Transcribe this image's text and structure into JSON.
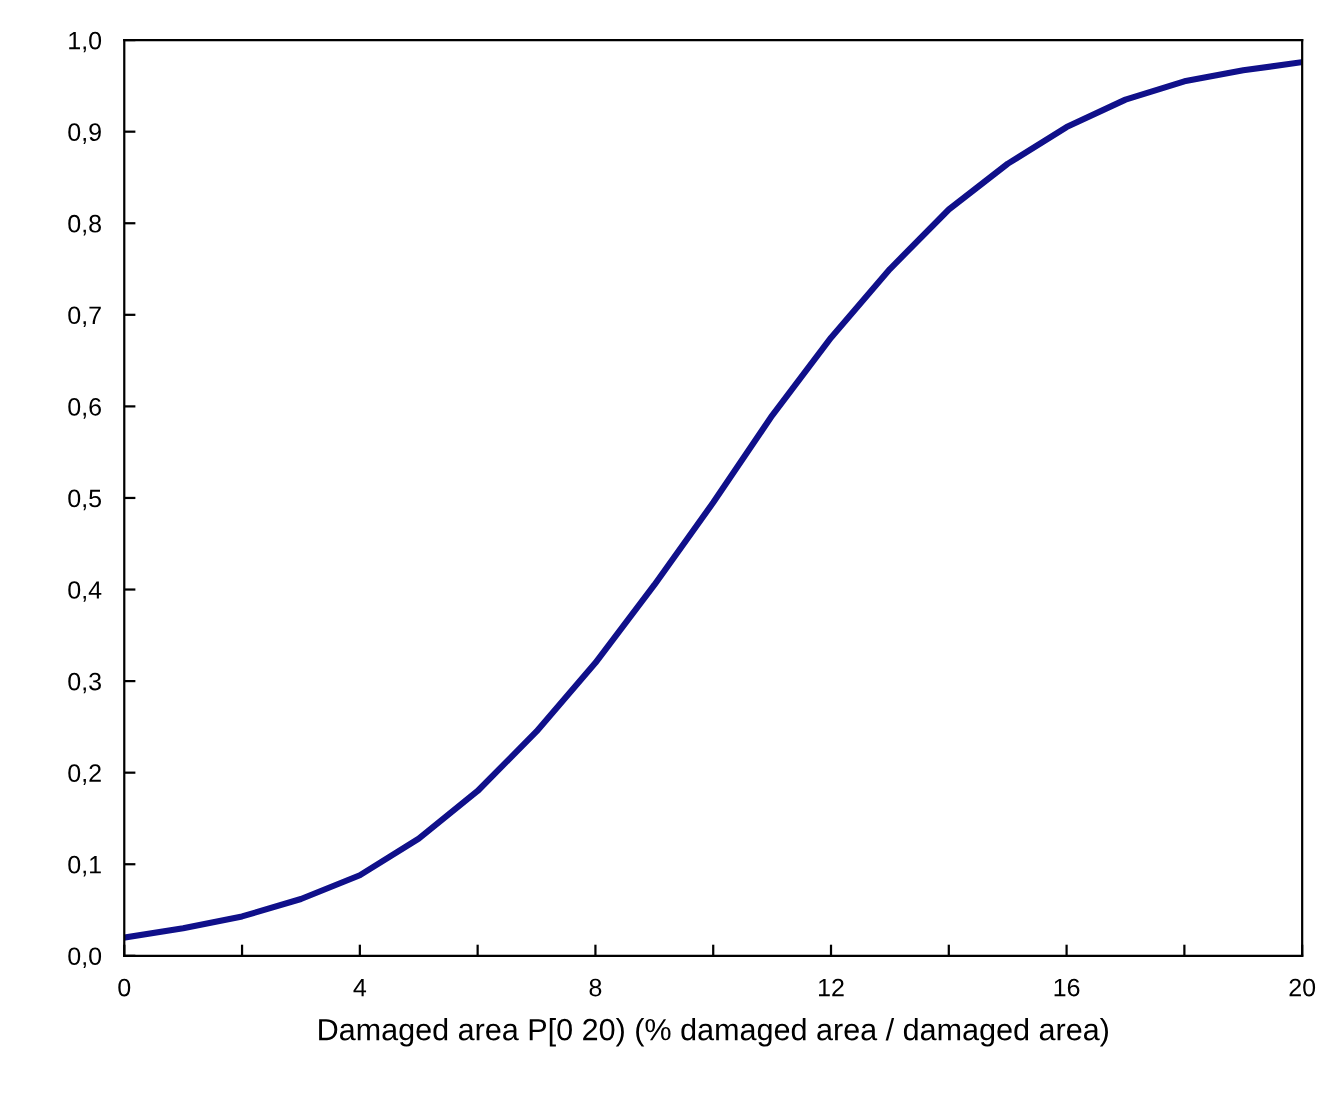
{
  "chart_data": {
    "type": "line",
    "xlabel": "Damaged area P[0 20) (% damaged area / damaged area)",
    "x": [
      0,
      1,
      2,
      3,
      4,
      5,
      6,
      7,
      8,
      9,
      10,
      11,
      12,
      13,
      14,
      15,
      16,
      17,
      18,
      19,
      20
    ],
    "series": [
      {
        "color": "#10108a",
        "values": [
          0.02,
          0.03,
          0.043,
          0.062,
          0.088,
          0.128,
          0.18,
          0.245,
          0.32,
          0.405,
          0.495,
          0.59,
          0.675,
          0.75,
          0.815,
          0.865,
          0.905,
          0.935,
          0.955,
          0.967,
          0.976
        ]
      }
    ],
    "xlim": [
      0,
      20
    ],
    "xticks": [
      0,
      {
        "value": 2,
        "label": null
      },
      4,
      {
        "value": 6,
        "label": null
      },
      8,
      {
        "value": 10,
        "label": null
      },
      12,
      {
        "value": 14,
        "label": null
      },
      16,
      {
        "value": 18,
        "label": null
      },
      20
    ],
    "ylim": [
      0,
      1
    ],
    "yticks": [
      {
        "value": 0,
        "label": "0,0"
      },
      {
        "value": 0.1,
        "label": "0,1"
      },
      {
        "value": 0.2,
        "label": "0,2"
      },
      {
        "value": 0.3,
        "label": "0,3"
      },
      {
        "value": 0.4,
        "label": "0,4"
      },
      {
        "value": 0.5,
        "label": "0,5"
      },
      {
        "value": 0.6,
        "label": "0,6"
      },
      {
        "value": 0.7,
        "label": "0,7"
      },
      {
        "value": 0.8,
        "label": "0,8"
      },
      {
        "value": 0.9,
        "label": "0,9"
      },
      {
        "value": 1,
        "label": "1,0"
      }
    ],
    "grid": false,
    "marker": "none",
    "line_style": "solid"
  }
}
